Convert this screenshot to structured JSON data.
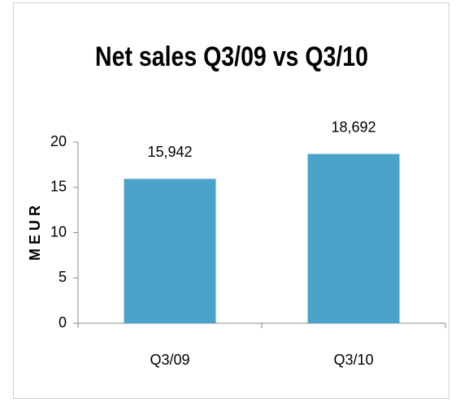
{
  "chart_data": {
    "type": "bar",
    "title": "Net sales Q3/09 vs Q3/10",
    "y_label": "M E U R",
    "categories": [
      "Q3/09",
      "Q3/10"
    ],
    "values": [
      15.942,
      18.692
    ],
    "value_labels": [
      "15,942",
      "18,692"
    ],
    "color": "#4ba3c9",
    "ylim": [
      0,
      20
    ],
    "yticks": [
      0,
      5,
      10,
      15,
      20
    ],
    "grid": false
  }
}
